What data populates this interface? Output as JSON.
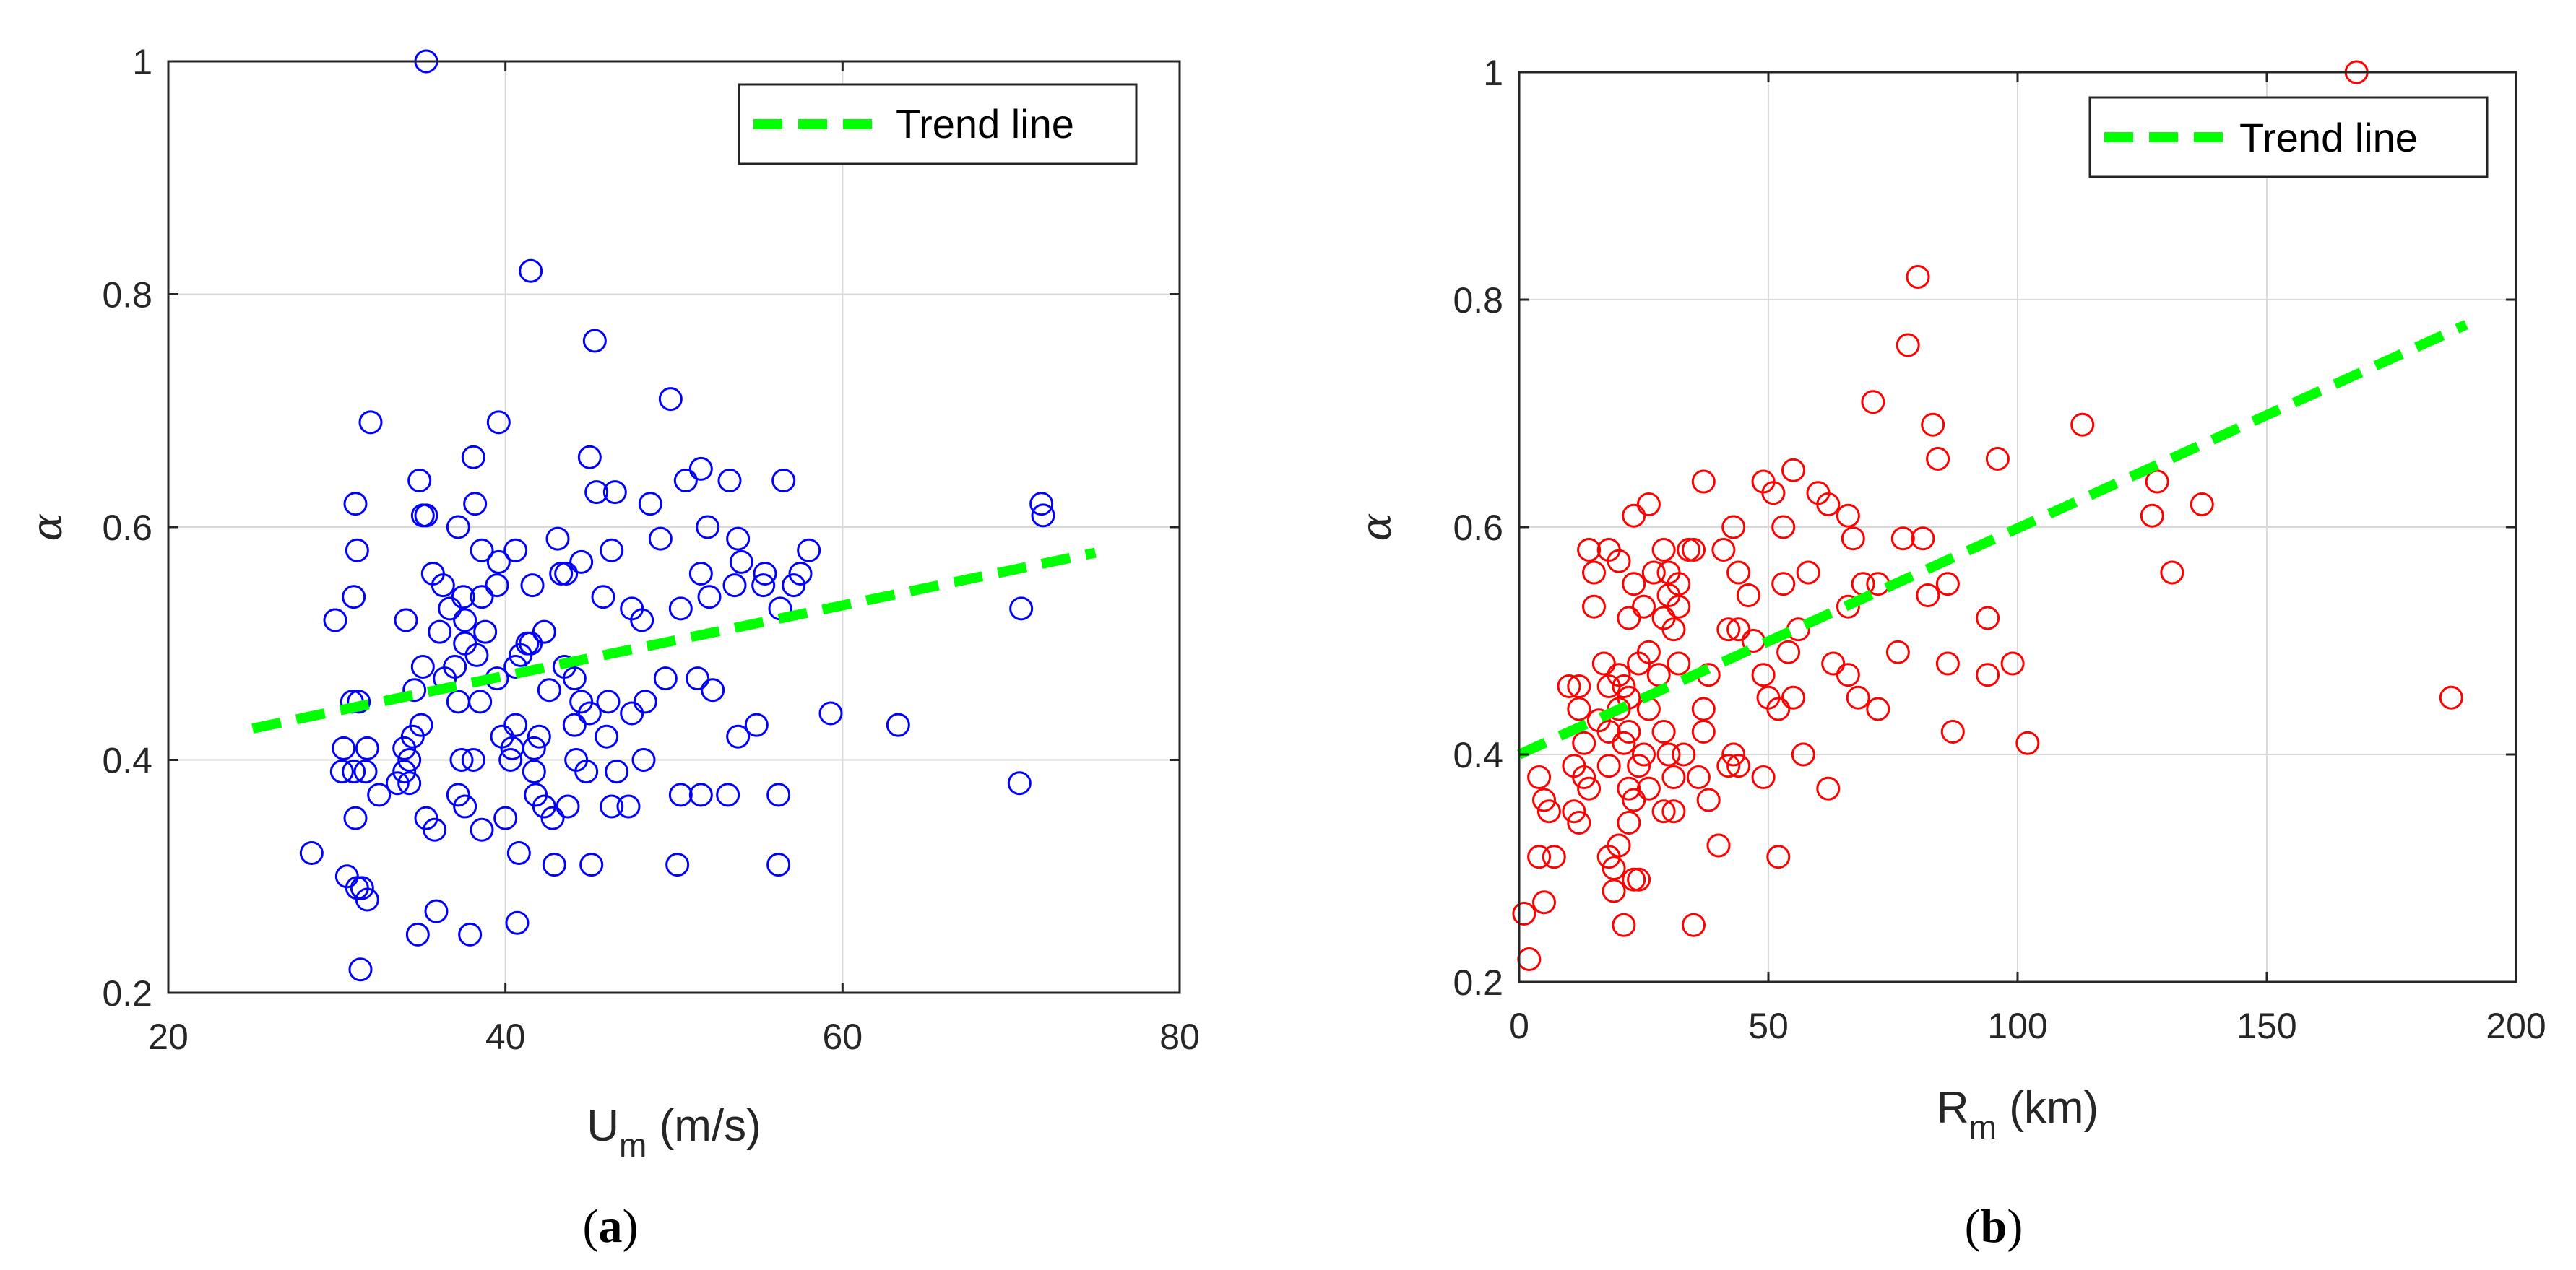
{
  "chart_data": [
    {
      "type": "scatter",
      "panel_label": "a",
      "xlabel_main": "U",
      "xlabel_sub": "m",
      "xlabel_unit": " (m/s)",
      "ylabel": "α",
      "xlim": [
        20,
        80
      ],
      "ylim": [
        0.2,
        1
      ],
      "xticks": [
        "20",
        "40",
        "60",
        "80"
      ],
      "yticks": [
        "0.2",
        "0.4",
        "0.6",
        "0.8",
        "1"
      ],
      "grid": true,
      "legend_location": "top-right",
      "legend": "Trend line",
      "marker_color": "#0000ff",
      "trend_color": "#00ff00",
      "trend_line": {
        "x": [
          25,
          75
        ],
        "y": [
          0.427,
          0.578
        ]
      },
      "points": [
        [
          35.3,
          1.0
        ],
        [
          41.5,
          0.82
        ],
        [
          45.3,
          0.76
        ],
        [
          49.8,
          0.71
        ],
        [
          32.0,
          0.69
        ],
        [
          39.6,
          0.69
        ],
        [
          45.0,
          0.66
        ],
        [
          38.1,
          0.66
        ],
        [
          51.6,
          0.65
        ],
        [
          53.3,
          0.64
        ],
        [
          56.5,
          0.64
        ],
        [
          34.9,
          0.64
        ],
        [
          45.4,
          0.63
        ],
        [
          46.5,
          0.63
        ],
        [
          50.7,
          0.64
        ],
        [
          31.1,
          0.62
        ],
        [
          38.2,
          0.62
        ],
        [
          48.6,
          0.62
        ],
        [
          71.8,
          0.62
        ],
        [
          71.9,
          0.61
        ],
        [
          35.1,
          0.61
        ],
        [
          35.3,
          0.61
        ],
        [
          37.2,
          0.6
        ],
        [
          52.0,
          0.6
        ],
        [
          43.1,
          0.59
        ],
        [
          49.2,
          0.59
        ],
        [
          53.8,
          0.59
        ],
        [
          31.2,
          0.58
        ],
        [
          38.6,
          0.58
        ],
        [
          40.6,
          0.58
        ],
        [
          46.3,
          0.58
        ],
        [
          58.0,
          0.58
        ],
        [
          54.0,
          0.57
        ],
        [
          44.5,
          0.57
        ],
        [
          39.6,
          0.57
        ],
        [
          35.7,
          0.56
        ],
        [
          43.6,
          0.56
        ],
        [
          43.3,
          0.56
        ],
        [
          51.6,
          0.56
        ],
        [
          55.4,
          0.56
        ],
        [
          57.5,
          0.56
        ],
        [
          41.6,
          0.55
        ],
        [
          36.3,
          0.55
        ],
        [
          39.5,
          0.55
        ],
        [
          53.6,
          0.55
        ],
        [
          55.3,
          0.55
        ],
        [
          57.1,
          0.55
        ],
        [
          37.5,
          0.54
        ],
        [
          38.6,
          0.54
        ],
        [
          45.8,
          0.54
        ],
        [
          52.1,
          0.54
        ],
        [
          31.0,
          0.54
        ],
        [
          34.1,
          0.52
        ],
        [
          37.6,
          0.52
        ],
        [
          29.9,
          0.52
        ],
        [
          36.7,
          0.53
        ],
        [
          50.4,
          0.53
        ],
        [
          56.3,
          0.53
        ],
        [
          70.6,
          0.53
        ],
        [
          47.5,
          0.53
        ],
        [
          48.1,
          0.52
        ],
        [
          36.1,
          0.51
        ],
        [
          38.8,
          0.51
        ],
        [
          42.3,
          0.51
        ],
        [
          37.6,
          0.5
        ],
        [
          41.3,
          0.5
        ],
        [
          41.5,
          0.5
        ],
        [
          38.3,
          0.49
        ],
        [
          40.9,
          0.49
        ],
        [
          37.0,
          0.48
        ],
        [
          40.6,
          0.48
        ],
        [
          43.5,
          0.48
        ],
        [
          35.1,
          0.48
        ],
        [
          44.1,
          0.47
        ],
        [
          36.4,
          0.47
        ],
        [
          39.5,
          0.47
        ],
        [
          49.5,
          0.47
        ],
        [
          51.4,
          0.47
        ],
        [
          52.3,
          0.46
        ],
        [
          34.6,
          0.46
        ],
        [
          42.6,
          0.46
        ],
        [
          37.2,
          0.45
        ],
        [
          38.5,
          0.45
        ],
        [
          46.1,
          0.45
        ],
        [
          31.3,
          0.45
        ],
        [
          30.9,
          0.45
        ],
        [
          44.5,
          0.45
        ],
        [
          45.0,
          0.44
        ],
        [
          47.5,
          0.44
        ],
        [
          48.3,
          0.45
        ],
        [
          59.3,
          0.44
        ],
        [
          35.0,
          0.43
        ],
        [
          40.6,
          0.43
        ],
        [
          44.1,
          0.43
        ],
        [
          54.9,
          0.43
        ],
        [
          63.3,
          0.43
        ],
        [
          34.5,
          0.42
        ],
        [
          39.8,
          0.42
        ],
        [
          42.0,
          0.42
        ],
        [
          46.0,
          0.42
        ],
        [
          53.8,
          0.42
        ],
        [
          30.4,
          0.41
        ],
        [
          31.8,
          0.41
        ],
        [
          34.0,
          0.41
        ],
        [
          40.4,
          0.41
        ],
        [
          41.7,
          0.41
        ],
        [
          34.3,
          0.4
        ],
        [
          37.4,
          0.4
        ],
        [
          38.1,
          0.4
        ],
        [
          40.3,
          0.4
        ],
        [
          44.2,
          0.4
        ],
        [
          48.2,
          0.4
        ],
        [
          31.7,
          0.39
        ],
        [
          30.3,
          0.39
        ],
        [
          31.0,
          0.39
        ],
        [
          34.0,
          0.39
        ],
        [
          41.7,
          0.39
        ],
        [
          44.8,
          0.39
        ],
        [
          46.6,
          0.39
        ],
        [
          33.6,
          0.38
        ],
        [
          34.3,
          0.38
        ],
        [
          70.5,
          0.38
        ],
        [
          32.5,
          0.37
        ],
        [
          37.2,
          0.37
        ],
        [
          50.4,
          0.37
        ],
        [
          51.6,
          0.37
        ],
        [
          53.2,
          0.37
        ],
        [
          56.2,
          0.37
        ],
        [
          41.8,
          0.37
        ],
        [
          37.6,
          0.36
        ],
        [
          42.3,
          0.36
        ],
        [
          43.7,
          0.36
        ],
        [
          46.3,
          0.36
        ],
        [
          47.3,
          0.36
        ],
        [
          31.1,
          0.35
        ],
        [
          35.3,
          0.35
        ],
        [
          40.0,
          0.35
        ],
        [
          42.8,
          0.35
        ],
        [
          35.8,
          0.34
        ],
        [
          38.6,
          0.34
        ],
        [
          40.8,
          0.32
        ],
        [
          28.5,
          0.32
        ],
        [
          42.9,
          0.31
        ],
        [
          45.1,
          0.31
        ],
        [
          50.2,
          0.31
        ],
        [
          56.2,
          0.31
        ],
        [
          30.6,
          0.3
        ],
        [
          31.2,
          0.29
        ],
        [
          31.5,
          0.29
        ],
        [
          31.8,
          0.28
        ],
        [
          35.9,
          0.27
        ],
        [
          40.7,
          0.26
        ],
        [
          34.8,
          0.25
        ],
        [
          37.9,
          0.25
        ],
        [
          31.4,
          0.22
        ]
      ]
    },
    {
      "type": "scatter",
      "panel_label": "b",
      "xlabel_main": "R",
      "xlabel_sub": "m",
      "xlabel_unit": " (km)",
      "ylabel": "α",
      "xlim": [
        0,
        200
      ],
      "ylim": [
        0.2,
        1
      ],
      "xticks": [
        "0",
        "50",
        "100",
        "150",
        "200"
      ],
      "yticks": [
        "0.2",
        "0.4",
        "0.6",
        "0.8",
        "1"
      ],
      "grid": true,
      "legend_location": "top-right",
      "legend": "Trend line",
      "marker_color": "#ff0000",
      "trend_color": "#00ff00",
      "trend_line": {
        "x": [
          0,
          190
        ],
        "y": [
          0.4,
          0.778
        ]
      },
      "points": [
        [
          168,
          1.0
        ],
        [
          80,
          0.82
        ],
        [
          78,
          0.76
        ],
        [
          71,
          0.71
        ],
        [
          113,
          0.69
        ],
        [
          83,
          0.69
        ],
        [
          84,
          0.66
        ],
        [
          96,
          0.66
        ],
        [
          55,
          0.65
        ],
        [
          49,
          0.64
        ],
        [
          37,
          0.64
        ],
        [
          51,
          0.63
        ],
        [
          60,
          0.63
        ],
        [
          62,
          0.62
        ],
        [
          26,
          0.62
        ],
        [
          137,
          0.62
        ],
        [
          128,
          0.64
        ],
        [
          23,
          0.61
        ],
        [
          127,
          0.61
        ],
        [
          66,
          0.61
        ],
        [
          43,
          0.6
        ],
        [
          53,
          0.6
        ],
        [
          77,
          0.59
        ],
        [
          81,
          0.59
        ],
        [
          67,
          0.59
        ],
        [
          41,
          0.58
        ],
        [
          14,
          0.58
        ],
        [
          29,
          0.58
        ],
        [
          18,
          0.58
        ],
        [
          34,
          0.58
        ],
        [
          35,
          0.58
        ],
        [
          20,
          0.57
        ],
        [
          27,
          0.56
        ],
        [
          15,
          0.56
        ],
        [
          30,
          0.56
        ],
        [
          58,
          0.56
        ],
        [
          131,
          0.56
        ],
        [
          44,
          0.56
        ],
        [
          23,
          0.55
        ],
        [
          32,
          0.55
        ],
        [
          53,
          0.55
        ],
        [
          69,
          0.55
        ],
        [
          72,
          0.55
        ],
        [
          86,
          0.55
        ],
        [
          82,
          0.54
        ],
        [
          30,
          0.54
        ],
        [
          46,
          0.54
        ],
        [
          15,
          0.53
        ],
        [
          25,
          0.53
        ],
        [
          32,
          0.53
        ],
        [
          94,
          0.52
        ],
        [
          22,
          0.52
        ],
        [
          29,
          0.52
        ],
        [
          66,
          0.53
        ],
        [
          44,
          0.51
        ],
        [
          56,
          0.51
        ],
        [
          31,
          0.51
        ],
        [
          42,
          0.51
        ],
        [
          47,
          0.5
        ],
        [
          26,
          0.49
        ],
        [
          54,
          0.49
        ],
        [
          76,
          0.49
        ],
        [
          24,
          0.48
        ],
        [
          17,
          0.48
        ],
        [
          32,
          0.48
        ],
        [
          63,
          0.48
        ],
        [
          86,
          0.48
        ],
        [
          99,
          0.48
        ],
        [
          28,
          0.47
        ],
        [
          20,
          0.47
        ],
        [
          38,
          0.47
        ],
        [
          49,
          0.47
        ],
        [
          66,
          0.47
        ],
        [
          94,
          0.47
        ],
        [
          10,
          0.46
        ],
        [
          12,
          0.46
        ],
        [
          18,
          0.46
        ],
        [
          21,
          0.46
        ],
        [
          22,
          0.45
        ],
        [
          50,
          0.45
        ],
        [
          55,
          0.45
        ],
        [
          68,
          0.45
        ],
        [
          187,
          0.45
        ],
        [
          12,
          0.44
        ],
        [
          20,
          0.44
        ],
        [
          26,
          0.44
        ],
        [
          37,
          0.44
        ],
        [
          72,
          0.44
        ],
        [
          52,
          0.44
        ],
        [
          16,
          0.43
        ],
        [
          18,
          0.42
        ],
        [
          22,
          0.42
        ],
        [
          29,
          0.42
        ],
        [
          37,
          0.42
        ],
        [
          87,
          0.42
        ],
        [
          102,
          0.41
        ],
        [
          13,
          0.41
        ],
        [
          21,
          0.41
        ],
        [
          25,
          0.4
        ],
        [
          30,
          0.4
        ],
        [
          33,
          0.4
        ],
        [
          43,
          0.4
        ],
        [
          57,
          0.4
        ],
        [
          24,
          0.39
        ],
        [
          11,
          0.39
        ],
        [
          18,
          0.39
        ],
        [
          44,
          0.39
        ],
        [
          42,
          0.39
        ],
        [
          13,
          0.38
        ],
        [
          31,
          0.38
        ],
        [
          4,
          0.38
        ],
        [
          36,
          0.38
        ],
        [
          49,
          0.38
        ],
        [
          14,
          0.37
        ],
        [
          22,
          0.37
        ],
        [
          26,
          0.37
        ],
        [
          62,
          0.37
        ],
        [
          5,
          0.36
        ],
        [
          23,
          0.36
        ],
        [
          38,
          0.36
        ],
        [
          6,
          0.35
        ],
        [
          11,
          0.35
        ],
        [
          29,
          0.35
        ],
        [
          31,
          0.35
        ],
        [
          12,
          0.34
        ],
        [
          22,
          0.34
        ],
        [
          40,
          0.32
        ],
        [
          20,
          0.32
        ],
        [
          4,
          0.31
        ],
        [
          7,
          0.31
        ],
        [
          18,
          0.31
        ],
        [
          52,
          0.31
        ],
        [
          19,
          0.3
        ],
        [
          24,
          0.29
        ],
        [
          23,
          0.29
        ],
        [
          19,
          0.28
        ],
        [
          5,
          0.27
        ],
        [
          1,
          0.26
        ],
        [
          21,
          0.25
        ],
        [
          35,
          0.25
        ],
        [
          2,
          0.22
        ]
      ]
    }
  ]
}
